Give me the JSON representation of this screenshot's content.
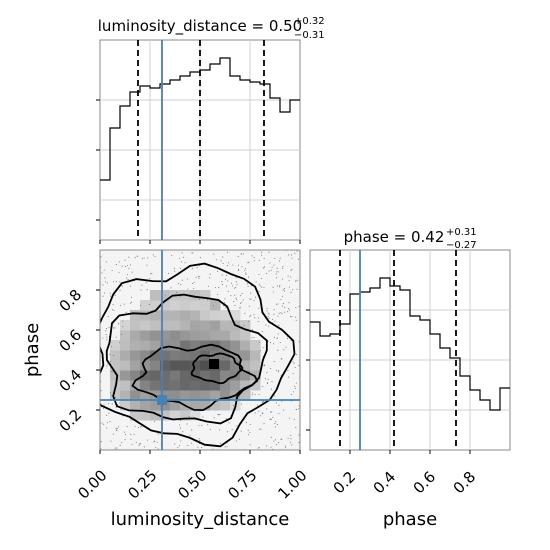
{
  "chart_data": {
    "type": "corner",
    "truth_color": "#4682b4",
    "parameters": [
      "luminosity_distance",
      "phase"
    ],
    "titles": [
      {
        "param": "luminosity_distance",
        "median": "0.50",
        "plus": "+0.32",
        "minus": "−0.31"
      },
      {
        "param": "phase",
        "median": "0.42",
        "plus": "+0.31",
        "minus": "−0.27"
      }
    ],
    "axis_labels": {
      "x_left": "luminosity_distance",
      "x_right": "phase",
      "y_left": "phase"
    },
    "luminosity_distance_hist": {
      "range": [
        0,
        1
      ],
      "bins": 20,
      "values": [
        0.3,
        0.56,
        0.67,
        0.74,
        0.77,
        0.76,
        0.78,
        0.8,
        0.82,
        0.84,
        0.85,
        0.88,
        0.91,
        0.82,
        0.8,
        0.79,
        0.78,
        0.71,
        0.64,
        0.7
      ],
      "quantiles": [
        0.19,
        0.5,
        0.82
      ],
      "truth": 0.31,
      "ylim": [
        0,
        1.0
      ]
    },
    "phase_hist": {
      "range": [
        0,
        1
      ],
      "bins": 20,
      "values": [
        0.64,
        0.57,
        0.58,
        0.63,
        0.78,
        0.79,
        0.81,
        0.86,
        0.82,
        0.8,
        0.67,
        0.65,
        0.58,
        0.51,
        0.46,
        0.37,
        0.3,
        0.25,
        0.2,
        0.31
      ],
      "quantiles": [
        0.15,
        0.42,
        0.73
      ],
      "truth": 0.25,
      "ylim": [
        0,
        1.0
      ]
    },
    "joint": {
      "x_param": "luminosity_distance",
      "y_param": "phase",
      "xlim": [
        0,
        1
      ],
      "ylim": [
        0,
        1
      ],
      "truth": [
        0.31,
        0.25
      ],
      "peak": [
        0.57,
        0.43
      ],
      "x_ticks": [
        "0.00",
        "0.25",
        "0.50",
        "0.75",
        "1.00"
      ],
      "y_ticks": [
        "0.2",
        "0.4",
        "0.6",
        "0.8"
      ]
    },
    "phase_x_ticks": [
      "0.2",
      "0.4",
      "0.6",
      "0.8"
    ]
  }
}
